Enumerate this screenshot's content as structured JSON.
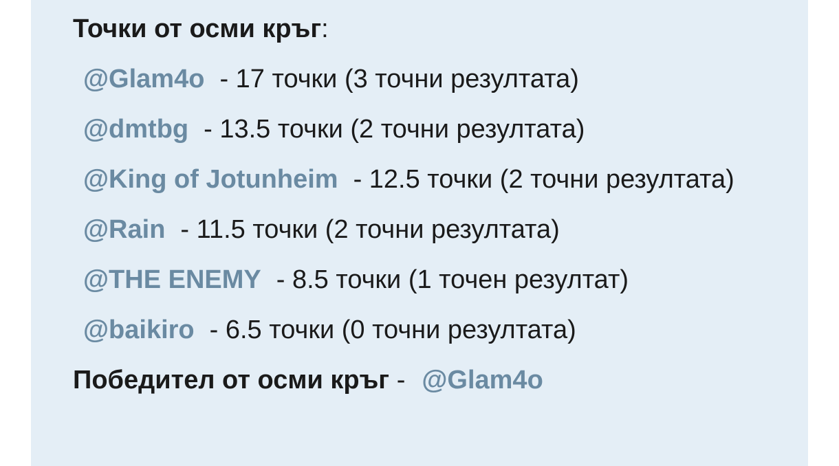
{
  "heading": "Точки от осми кръг",
  "heading_suffix": ":",
  "results": [
    {
      "user": "@Glam4o",
      "text": "- 17 точки (3 точни резултата)"
    },
    {
      "user": "@dmtbg",
      "text": "- 13.5 точки (2 точни резултата)"
    },
    {
      "user": "@King of Jotunheim",
      "text": "- 12.5 точки (2 точни резултата)"
    },
    {
      "user": "@Rain",
      "text": "- 11.5 точки (2 точни резултата)"
    },
    {
      "user": "@THE ENEMY",
      "text": "- 8.5 точки (1 точен резултат)"
    },
    {
      "user": "@baikiro",
      "text": "- 6.5 точки (0 точни резултата)"
    }
  ],
  "winner": {
    "label": "Победител от осми кръг",
    "separator": "-",
    "user": "@Glam4o"
  },
  "colors": {
    "background": "#e4eef6",
    "mention": "#6a8aa2"
  }
}
